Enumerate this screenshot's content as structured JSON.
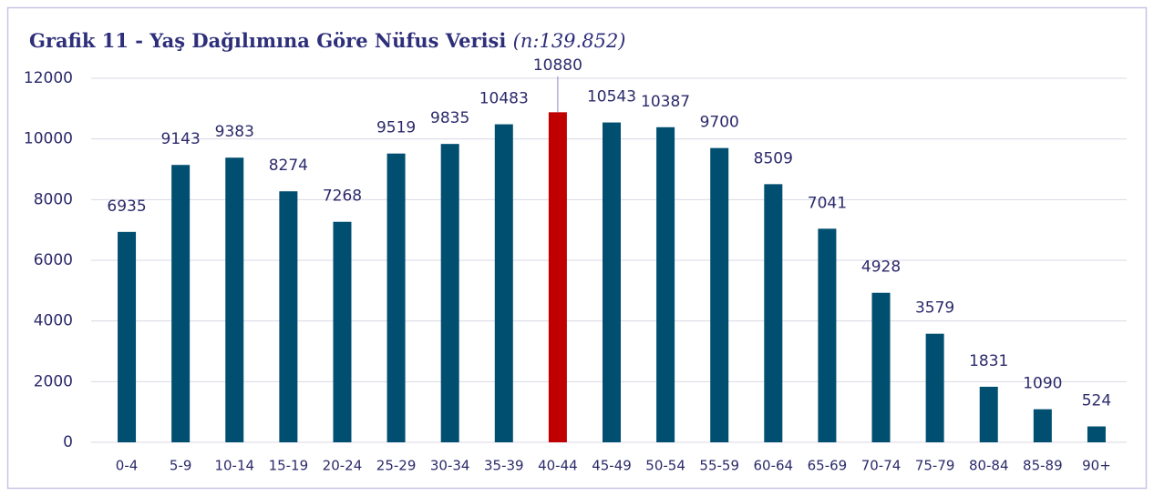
{
  "chart_data": {
    "type": "bar",
    "title": "Grafik 11 - Yaş Dağılımına Göre Nüfus Verisi",
    "subtitle": "(n:139.852)",
    "categories": [
      "0-4",
      "5-9",
      "10-14",
      "15-19",
      "20-24",
      "25-29",
      "30-34",
      "35-39",
      "40-44",
      "45-49",
      "50-54",
      "55-59",
      "60-64",
      "65-69",
      "70-74",
      "75-79",
      "80-84",
      "85-89",
      "90+"
    ],
    "values": [
      6935,
      9143,
      9383,
      8274,
      7268,
      9519,
      9835,
      10483,
      10880,
      10543,
      10387,
      9700,
      8509,
      7041,
      4928,
      3579,
      1831,
      1090,
      524
    ],
    "colors": [
      "#004e70",
      "#004e70",
      "#004e70",
      "#004e70",
      "#004e70",
      "#004e70",
      "#004e70",
      "#004e70",
      "#c00000",
      "#004e70",
      "#004e70",
      "#004e70",
      "#004e70",
      "#004e70",
      "#004e70",
      "#004e70",
      "#004e70",
      "#004e70",
      "#004e70"
    ],
    "ylim": [
      0,
      12000
    ],
    "yticks": [
      0,
      2000,
      4000,
      6000,
      8000,
      10000,
      12000
    ],
    "grid": true
  }
}
